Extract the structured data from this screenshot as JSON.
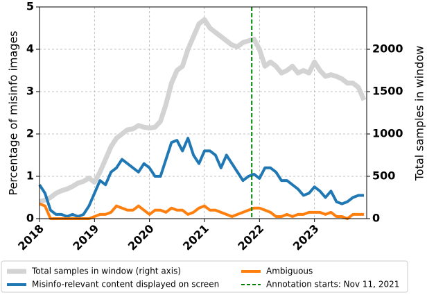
{
  "chart_data": {
    "type": "line",
    "ylabel": "Percentage of misinfo images",
    "y2label": "Total samples in window",
    "x": [
      2018.0,
      2018.1,
      2018.2,
      2018.3,
      2018.4,
      2018.5,
      2018.6,
      2018.7,
      2018.8,
      2018.9,
      2019.0,
      2019.1,
      2019.2,
      2019.3,
      2019.4,
      2019.5,
      2019.6,
      2019.7,
      2019.8,
      2019.9,
      2020.0,
      2020.1,
      2020.2,
      2020.3,
      2020.4,
      2020.5,
      2020.6,
      2020.7,
      2020.8,
      2020.9,
      2021.0,
      2021.1,
      2021.2,
      2021.3,
      2021.4,
      2021.5,
      2021.6,
      2021.7,
      2021.8,
      2021.9,
      2022.0,
      2022.1,
      2022.2,
      2022.3,
      2022.4,
      2022.5,
      2022.6,
      2022.7,
      2022.8,
      2022.9,
      2023.0,
      2023.1,
      2023.2,
      2023.3,
      2023.4,
      2023.5,
      2023.6,
      2023.7,
      2023.8,
      2023.9
    ],
    "xlim": [
      2018,
      2023.95
    ],
    "xticks": [
      2018,
      2019,
      2020,
      2021,
      2022,
      2023
    ],
    "ylim": [
      0,
      5
    ],
    "yticks": [
      0,
      1,
      2,
      3,
      4,
      5
    ],
    "y2lim": [
      0,
      2500
    ],
    "y2ticks": [
      0,
      500,
      1000,
      1500,
      2000
    ],
    "grid": true,
    "series": [
      {
        "name": "Total samples in window (right axis)",
        "color": "#d3d3d3",
        "axis": "y2",
        "values": [
          200,
          220,
          250,
          300,
          330,
          350,
          380,
          420,
          440,
          480,
          430,
          550,
          700,
          850,
          950,
          1000,
          1050,
          1060,
          1100,
          1080,
          1070,
          1080,
          1150,
          1350,
          1600,
          1750,
          1800,
          2000,
          2150,
          2300,
          2350,
          2250,
          2200,
          2150,
          2100,
          2050,
          2030,
          2080,
          2100,
          2120,
          2000,
          1800,
          1850,
          1800,
          1720,
          1750,
          1800,
          1720,
          1750,
          1720,
          1850,
          1750,
          1680,
          1700,
          1680,
          1650,
          1600,
          1600,
          1550,
          1400
        ]
      },
      {
        "name": "Misinfo-relevant content displayed on screen",
        "color": "#1f77b4",
        "values": [
          0.8,
          0.6,
          0.2,
          0.1,
          0.1,
          0.05,
          0.1,
          0.05,
          0.1,
          0.3,
          0.6,
          0.9,
          0.8,
          1.1,
          1.2,
          1.4,
          1.3,
          1.2,
          1.1,
          1.3,
          1.2,
          1.0,
          1.0,
          1.4,
          1.8,
          1.85,
          1.6,
          1.9,
          1.5,
          1.3,
          1.6,
          1.6,
          1.5,
          1.2,
          1.5,
          1.3,
          1.1,
          0.9,
          1.0,
          1.05,
          0.95,
          1.2,
          1.2,
          1.1,
          0.9,
          0.9,
          0.8,
          0.7,
          0.55,
          0.6,
          0.75,
          0.65,
          0.5,
          0.65,
          0.4,
          0.35,
          0.4,
          0.5,
          0.55,
          0.55
        ]
      },
      {
        "name": "Ambiguous",
        "color": "#ff7f0e",
        "values": [
          0.35,
          0.3,
          0,
          0,
          0,
          0,
          0,
          0,
          0,
          0,
          0.05,
          0.1,
          0.1,
          0.15,
          0.3,
          0.25,
          0.2,
          0.2,
          0.3,
          0.2,
          0.1,
          0.2,
          0.2,
          0.15,
          0.25,
          0.2,
          0.2,
          0.1,
          0.15,
          0.25,
          0.3,
          0.2,
          0.2,
          0.15,
          0.1,
          0.05,
          0.1,
          0.15,
          0.2,
          0.25,
          0.25,
          0.2,
          0.15,
          0.05,
          0.05,
          0.1,
          0.05,
          0.1,
          0.1,
          0.15,
          0.15,
          0.15,
          0.1,
          0.15,
          0.05,
          0.05,
          0,
          0.1,
          0.1,
          0.1
        ]
      }
    ],
    "annotation": {
      "x": 2021.86,
      "label": "Annotation starts: Nov 11, 2021",
      "color": "#008000"
    }
  }
}
